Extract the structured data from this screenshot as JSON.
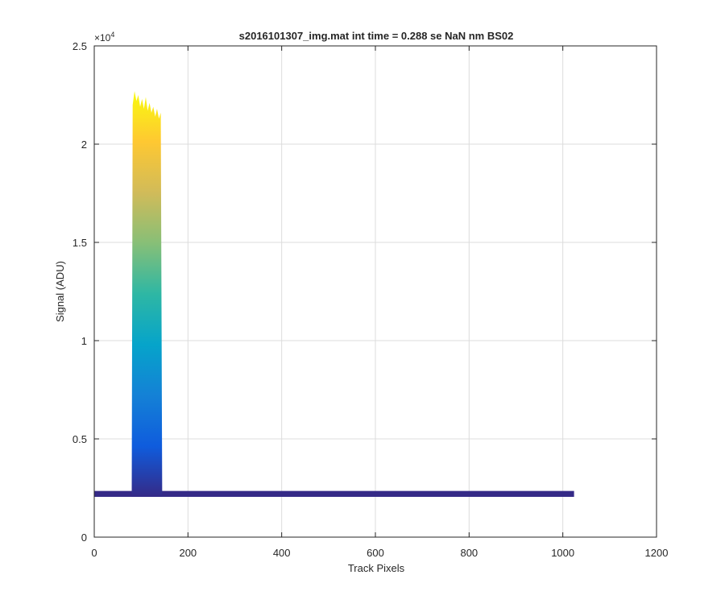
{
  "chart_data": {
    "type": "line",
    "title": "s2016101307_img.mat int time = 0.288 se  NaN nm BS02",
    "xlabel": "Track Pixels",
    "ylabel": "Signal (ADU)",
    "xlim": [
      0,
      1200
    ],
    "ylim": [
      0,
      25000
    ],
    "y_exponent_label": "×10",
    "y_exponent_power": "4",
    "xticks": [
      0,
      200,
      400,
      600,
      800,
      1000,
      1200
    ],
    "xtick_labels": [
      "0",
      "200",
      "400",
      "600",
      "800",
      "1000",
      "1200"
    ],
    "yticks": [
      0,
      5000,
      10000,
      15000,
      20000,
      25000
    ],
    "ytick_labels": [
      "0",
      "0.5",
      "1",
      "1.5",
      "2",
      "2.5"
    ],
    "grid": true,
    "legend": "none",
    "series_count_description": "many overlaid traces colored by intensity (parula)",
    "baseline": {
      "x_start": 0,
      "x_end": 1024,
      "y_low": 2050,
      "y_high": 2350
    },
    "peak": {
      "x_start": 80,
      "x_end": 145,
      "points": [
        {
          "x": 80,
          "y": 2300
        },
        {
          "x": 82,
          "y": 22000
        },
        {
          "x": 86,
          "y": 22700
        },
        {
          "x": 90,
          "y": 22200
        },
        {
          "x": 94,
          "y": 22500
        },
        {
          "x": 98,
          "y": 21900
        },
        {
          "x": 102,
          "y": 22300
        },
        {
          "x": 106,
          "y": 21800
        },
        {
          "x": 110,
          "y": 22400
        },
        {
          "x": 114,
          "y": 21700
        },
        {
          "x": 118,
          "y": 22100
        },
        {
          "x": 122,
          "y": 21600
        },
        {
          "x": 126,
          "y": 21900
        },
        {
          "x": 130,
          "y": 21400
        },
        {
          "x": 134,
          "y": 21800
        },
        {
          "x": 138,
          "y": 21300
        },
        {
          "x": 142,
          "y": 21600
        },
        {
          "x": 145,
          "y": 2300
        }
      ]
    },
    "colormap": [
      "#352a87",
      "#0f5cdd",
      "#1481d6",
      "#06a4ca",
      "#2eb7a4",
      "#87bf77",
      "#d1bb59",
      "#fec832",
      "#f9fb0e"
    ]
  }
}
